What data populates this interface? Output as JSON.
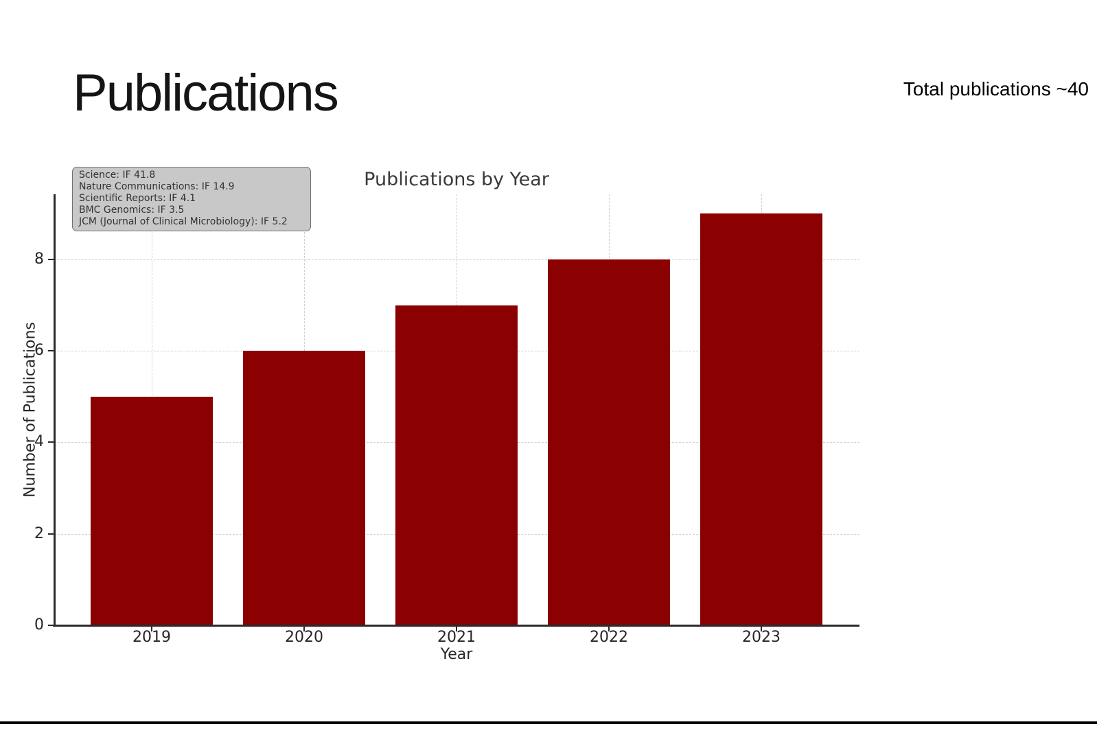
{
  "slide": {
    "title": "Publications",
    "total_note": "Total publications ~40"
  },
  "chart_data": {
    "type": "bar",
    "title": "Publications by Year",
    "xlabel": "Year",
    "ylabel": "Number of Publications",
    "categories": [
      "2019",
      "2020",
      "2021",
      "2022",
      "2023"
    ],
    "values": [
      5,
      6,
      7,
      8,
      9
    ],
    "y_ticks": [
      0,
      2,
      4,
      6,
      8
    ],
    "ylim": [
      0,
      9.44
    ],
    "bar_color": "#8B0000",
    "grid": true,
    "grid_style": "dashed",
    "legend_position": "none",
    "annotation_lines": [
      "Science: IF 41.8",
      "Nature Communications: IF 14.9",
      "Scientific Reports: IF 4.1",
      "BMC Genomics: IF 3.5",
      "JCM (Journal of Clinical Microbiology): IF 5.2"
    ]
  }
}
